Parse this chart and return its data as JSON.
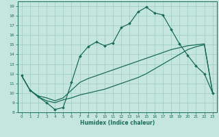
{
  "xlabel": "Humidex (Indice chaleur)",
  "bg_color": "#c5e6de",
  "line_color": "#1a6b5a",
  "grid_color": "#9dccc0",
  "xlim_min": -0.5,
  "xlim_max": 23.5,
  "ylim_min": 8,
  "ylim_max": 19.5,
  "xticks": [
    0,
    1,
    2,
    3,
    4,
    5,
    6,
    7,
    8,
    9,
    10,
    11,
    12,
    13,
    14,
    15,
    16,
    17,
    18,
    19,
    20,
    21,
    22,
    23
  ],
  "yticks": [
    8,
    9,
    10,
    11,
    12,
    13,
    14,
    15,
    16,
    17,
    18,
    19
  ],
  "line1_x": [
    0,
    1,
    2,
    3,
    4,
    5,
    6,
    7,
    8,
    9,
    10,
    11,
    12,
    13,
    14,
    15,
    16,
    17,
    18,
    19,
    20,
    21,
    22,
    23
  ],
  "line1_y": [
    11.8,
    10.3,
    9.6,
    9.0,
    8.3,
    8.5,
    11.1,
    13.8,
    14.8,
    15.3,
    14.9,
    15.2,
    16.8,
    17.2,
    18.4,
    18.9,
    18.3,
    18.1,
    16.6,
    15.1,
    13.9,
    12.8,
    12.0,
    10.0
  ],
  "line2_x": [
    0,
    1,
    2,
    3,
    4,
    5,
    6,
    7,
    8,
    9,
    10,
    11,
    12,
    13,
    14,
    15,
    16,
    17,
    18,
    19,
    20,
    21,
    22,
    23
  ],
  "line2_y": [
    11.8,
    10.3,
    9.6,
    9.2,
    9.0,
    9.3,
    9.5,
    9.8,
    10.0,
    10.2,
    10.4,
    10.7,
    11.0,
    11.3,
    11.6,
    12.0,
    12.5,
    13.0,
    13.5,
    14.0,
    14.5,
    14.8,
    15.0,
    10.0
  ],
  "line3_x": [
    0,
    1,
    2,
    3,
    4,
    5,
    6,
    7,
    8,
    9,
    10,
    11,
    12,
    13,
    14,
    15,
    16,
    17,
    18,
    19,
    20,
    21,
    22,
    23
  ],
  "line3_y": [
    11.8,
    10.3,
    9.7,
    9.5,
    9.2,
    9.5,
    10.3,
    11.1,
    11.5,
    11.8,
    12.1,
    12.4,
    12.7,
    13.0,
    13.3,
    13.6,
    13.9,
    14.2,
    14.5,
    14.7,
    14.9,
    15.0,
    15.1,
    10.0
  ]
}
